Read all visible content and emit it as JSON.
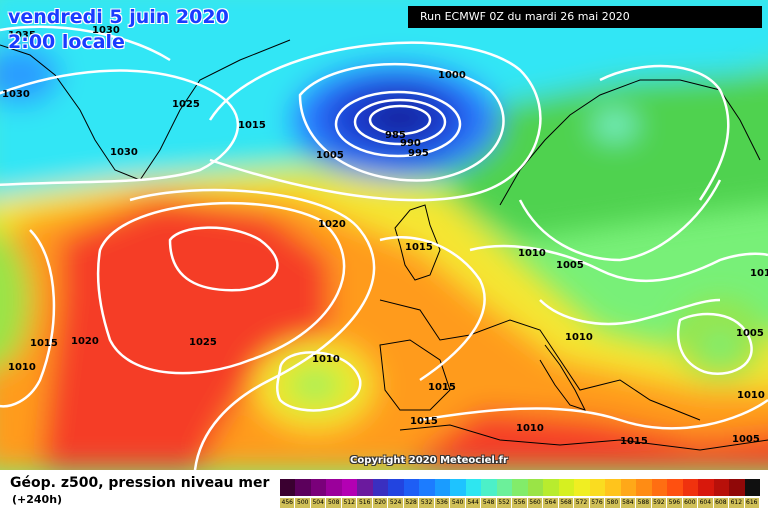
{
  "header": {
    "date_label": "vendredi 5 juin 2020",
    "time_label": "2:00 locale",
    "run_label": "Run ECMWF 0Z du mardi 26 mai 2020"
  },
  "copyright": "Copyright 2020 Meteociel.fr",
  "footer": {
    "title": "Géop. z500, pression niveau mer",
    "subtitle": "(+240h)"
  },
  "legend": {
    "ticks": [
      "456",
      "500",
      "504",
      "508",
      "512",
      "516",
      "520",
      "524",
      "528",
      "532",
      "536",
      "540",
      "544",
      "548",
      "552",
      "556",
      "560",
      "564",
      "568",
      "572",
      "576",
      "580",
      "584",
      "588",
      "592",
      "596",
      "600",
      "604",
      "608",
      "612",
      "616"
    ],
    "colors": [
      "#3a0030",
      "#5c005c",
      "#7a007a",
      "#9b009b",
      "#b300b3",
      "#6b1a9e",
      "#3a2fc0",
      "#2244e0",
      "#1e5ef5",
      "#1c7cff",
      "#1a9cff",
      "#1ec3ff",
      "#2ee6f0",
      "#4cf0c8",
      "#6cf09a",
      "#82ec6a",
      "#9ae446",
      "#b8ec2e",
      "#d6f020",
      "#f0ee22",
      "#fadc20",
      "#ffc41c",
      "#ffa818",
      "#ff8c14",
      "#ff6e12",
      "#ff5010",
      "#f0320e",
      "#d8180c",
      "#b8100a",
      "#900808",
      "#101010"
    ]
  },
  "map": {
    "pressure_labels": [
      "1035",
      "1030",
      "1030",
      "1025",
      "1015",
      "1030",
      "1000",
      "985",
      "990",
      "995",
      "1005",
      "1020",
      "1015",
      "1010",
      "1005",
      "1010",
      "1015",
      "1020",
      "1025",
      "1010",
      "1010",
      "1015",
      "1015",
      "1010",
      "1015",
      "1010",
      "1005",
      "1010",
      "1005"
    ],
    "colors": {
      "deep_blue": "#1e3cd2",
      "blue": "#2a78ff",
      "cyan": "#32e6f5",
      "light_green": "#78f078",
      "green": "#50d250",
      "yellow": "#f5e632",
      "orange": "#ff9b1e",
      "red": "#f53c28"
    }
  }
}
